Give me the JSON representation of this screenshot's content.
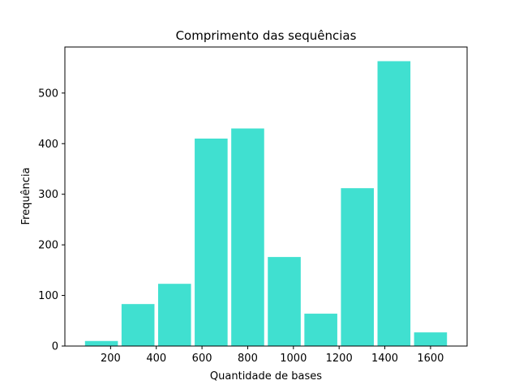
{
  "chart_data": {
    "type": "bar",
    "title": "Comprimento das sequências",
    "xlabel": "Quantidade de bases",
    "ylabel": "Frequência",
    "color": "#40e0d0",
    "bins": [
      {
        "start": 80,
        "end": 240,
        "value": 10
      },
      {
        "start": 240,
        "end": 400,
        "value": 83
      },
      {
        "start": 400,
        "end": 560,
        "value": 123
      },
      {
        "start": 560,
        "end": 720,
        "value": 410
      },
      {
        "start": 720,
        "end": 880,
        "value": 430
      },
      {
        "start": 880,
        "end": 1040,
        "value": 176
      },
      {
        "start": 1040,
        "end": 1200,
        "value": 64
      },
      {
        "start": 1200,
        "end": 1360,
        "value": 312
      },
      {
        "start": 1360,
        "end": 1520,
        "value": 563
      },
      {
        "start": 1520,
        "end": 1680,
        "value": 27
      }
    ],
    "xticks": [
      200,
      400,
      600,
      800,
      1000,
      1200,
      1400,
      1600
    ],
    "yticks": [
      0,
      100,
      200,
      300,
      400,
      500
    ],
    "xlim": [
      0,
      1760
    ],
    "ylim": [
      0,
      591
    ],
    "grid": false
  }
}
